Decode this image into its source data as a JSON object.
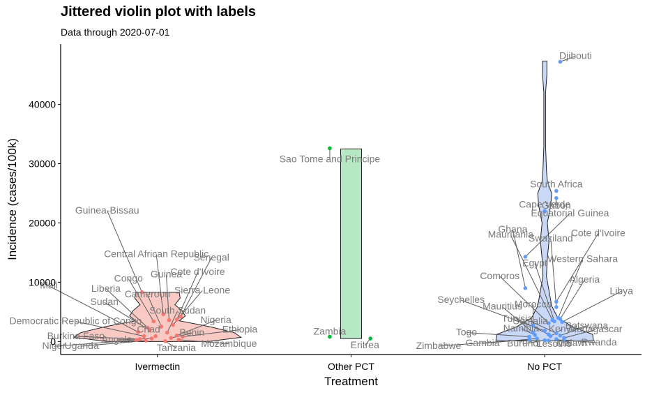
{
  "chart_data": {
    "type": "violin",
    "title": "Jittered violin plot with labels",
    "subtitle": "Data through 2020-07-01",
    "xlabel": "Treatment",
    "ylabel": "Incidence (cases/100k)",
    "ylim": [
      -2200,
      50200
    ],
    "yticks": [
      0,
      10000,
      20000,
      30000,
      40000
    ],
    "grid": false,
    "categories": [
      "Ivermectin",
      "Other PCT",
      "No PCT"
    ],
    "colors": {
      "Ivermectin": {
        "fill": "#f9c9c4",
        "point": "#f8766d"
      },
      "Other PCT": {
        "fill": "#b6e8c4",
        "point": "#00ba38"
      },
      "No PCT": {
        "fill": "#c9d8f7",
        "point": "#619cff"
      }
    },
    "groups": [
      {
        "name": "Ivermectin",
        "violin": [
          [
            0,
            0.58
          ],
          [
            700,
            0.96
          ],
          [
            1500,
            0.88
          ],
          [
            2500,
            0.6
          ],
          [
            3500,
            0.25
          ],
          [
            4300,
            0.32
          ],
          [
            5200,
            0.28
          ],
          [
            6200,
            0.2
          ],
          [
            7300,
            0.26
          ],
          [
            8300,
            0.25
          ]
        ],
        "points": [
          {
            "label": "Guinea-Bissau",
            "y": 8300,
            "jx": -0.08
          },
          {
            "label": "Central African Republic",
            "y": 4600,
            "jx": 0.03
          },
          {
            "label": "Senegal",
            "y": 4200,
            "jx": 0.12
          },
          {
            "label": "Mali",
            "y": 1600,
            "jx": -0.1
          },
          {
            "label": "Liberia",
            "y": 2300,
            "jx": -0.05
          },
          {
            "label": "Congo",
            "y": 3400,
            "jx": -0.02
          },
          {
            "label": "Guinea",
            "y": 3600,
            "jx": 0.06
          },
          {
            "label": "Cote d'Ivoire",
            "y": 3700,
            "jx": 0.1
          },
          {
            "label": "Sudan",
            "y": 1900,
            "jx": -0.04
          },
          {
            "label": "Cameroon",
            "y": 2500,
            "jx": 0.02
          },
          {
            "label": "Sierra Leone",
            "y": 2800,
            "jx": 0.08
          },
          {
            "label": "Democratic Republic of Congo",
            "y": 900,
            "jx": -0.07
          },
          {
            "label": "South Sudan",
            "y": 1500,
            "jx": 0.05
          },
          {
            "label": "Nigeria",
            "y": 1000,
            "jx": 0.1
          },
          {
            "label": "Burkina Faso",
            "y": 400,
            "jx": -0.09
          },
          {
            "label": "Chad",
            "y": 900,
            "jx": -0.01
          },
          {
            "label": "Benin",
            "y": 600,
            "jx": 0.07
          },
          {
            "label": "Ethiopia",
            "y": 800,
            "jx": 0.13
          },
          {
            "label": "Niger",
            "y": 250,
            "jx": -0.11
          },
          {
            "label": "Uganda",
            "y": 150,
            "jx": -0.06
          },
          {
            "label": "Angola",
            "y": 500,
            "jx": -0.03
          },
          {
            "label": "Tanzania",
            "y": 50,
            "jx": 0.04
          },
          {
            "label": "Mozambique",
            "y": 300,
            "jx": 0.11
          }
        ]
      },
      {
        "name": "Other PCT",
        "violin": [
          [
            500,
            0.12
          ],
          [
            3000,
            0.12
          ],
          [
            32500,
            0.12
          ]
        ],
        "points": [
          {
            "label": "Sao Tome and Principe",
            "y": 32600,
            "jx": -0.11
          },
          {
            "label": "Zambia",
            "y": 800,
            "jx": -0.11
          },
          {
            "label": "Eritrea",
            "y": 500,
            "jx": 0.1
          }
        ]
      },
      {
        "name": "No PCT",
        "violin": [
          [
            100,
            0.56
          ],
          [
            1200,
            0.55
          ],
          [
            2500,
            0.32
          ],
          [
            4000,
            0.15
          ],
          [
            6000,
            0.08
          ],
          [
            8500,
            0.05
          ],
          [
            11000,
            0.02
          ],
          [
            14000,
            0.03
          ],
          [
            17000,
            0.05
          ],
          [
            20000,
            0.03
          ],
          [
            23000,
            0.07
          ],
          [
            25000,
            0.08
          ],
          [
            27000,
            0.03
          ],
          [
            29000,
            0.02
          ],
          [
            33000,
            0.01
          ],
          [
            38000,
            0.01
          ],
          [
            42000,
            0.01
          ],
          [
            45000,
            0.025
          ],
          [
            47300,
            0.025
          ]
        ],
        "points": [
          {
            "label": "Djibouti",
            "y": 47200,
            "jx": 0.08
          },
          {
            "label": "South Africa",
            "y": 25400,
            "jx": 0.06
          },
          {
            "label": "Gabon",
            "y": 24200,
            "jx": 0.06
          },
          {
            "label": "Cape Verde",
            "y": 22000,
            "jx": 0.0
          },
          {
            "label": "Equatorial Guinea",
            "y": 14300,
            "jx": -0.1
          },
          {
            "label": "Mauritania",
            "y": 3600,
            "jx": 0.04
          },
          {
            "label": "Swaziland",
            "y": 5800,
            "jx": 0.06
          },
          {
            "label": "Cote d'Ivoire",
            "y": 6700,
            "jx": 0.06
          },
          {
            "label": "Ghana",
            "y": 9000,
            "jx": -0.1
          },
          {
            "label": "Egypt",
            "y": 3400,
            "jx": 0.05
          },
          {
            "label": "Western Sahara",
            "y": 4000,
            "jx": 0.07
          },
          {
            "label": "Algeria",
            "y": 3800,
            "jx": 0.08
          },
          {
            "label": "Libya",
            "y": 3300,
            "jx": 0.09
          },
          {
            "label": "Comoros",
            "y": 3100,
            "jx": 0.02
          },
          {
            "label": "Seychelles",
            "y": 1800,
            "jx": 0.0
          },
          {
            "label": "Mauritius",
            "y": 1500,
            "jx": -0.06
          },
          {
            "label": "Morocco",
            "y": 2700,
            "jx": -0.06
          },
          {
            "label": "Botswana",
            "y": 1000,
            "jx": 0.08
          },
          {
            "label": "Tunisia",
            "y": 1200,
            "jx": 0.02
          },
          {
            "label": "Somalia",
            "y": 1400,
            "jx": 0.06
          },
          {
            "label": "Kenya",
            "y": 900,
            "jx": 0.03
          },
          {
            "label": "Togo",
            "y": 800,
            "jx": -0.08
          },
          {
            "label": "Namibia",
            "y": 1100,
            "jx": -0.05
          },
          {
            "label": "Madagascar",
            "y": 600,
            "jx": 0.1
          },
          {
            "label": "Zimbabwe",
            "y": 300,
            "jx": -0.08
          },
          {
            "label": "Gambia",
            "y": 500,
            "jx": -0.04
          },
          {
            "label": "Burundi",
            "y": 200,
            "jx": 0.0
          },
          {
            "label": "Lesotho",
            "y": 150,
            "jx": 0.02
          },
          {
            "label": "Malawi",
            "y": 400,
            "jx": 0.06
          },
          {
            "label": "Rwanda",
            "y": 250,
            "jx": 0.1
          }
        ]
      }
    ]
  }
}
